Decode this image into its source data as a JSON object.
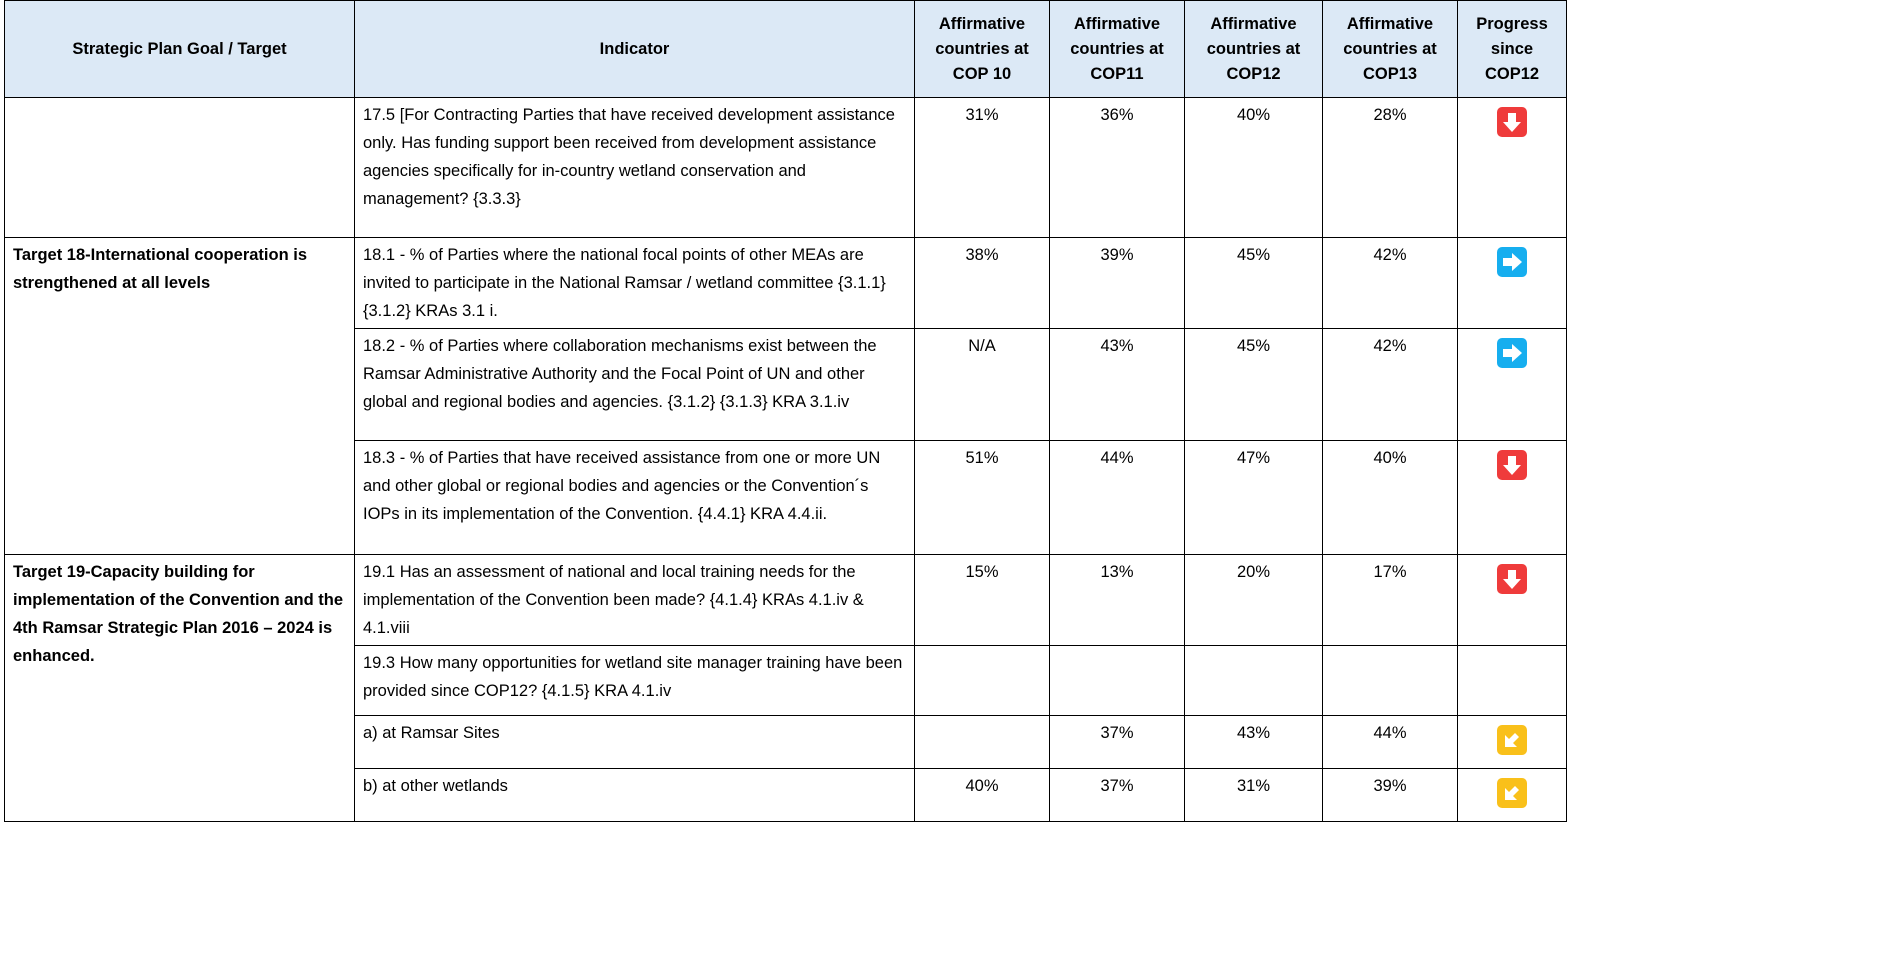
{
  "table": {
    "columns": [
      "Strategic Plan Goal / Target",
      "Indicator",
      "Affirmative countries at COP 10",
      "Affirmative countries at COP11",
      "Affirmative countries at COP12",
      "Affirmative countries at COP13",
      "Progress since COP12"
    ],
    "groups": [
      {
        "rows": [
          {
            "indicator": "17.5 [For Contracting Parties that have received development assistance only. Has funding support been received from development assistance agencies specifically for in-country wetland conservation and management? {3.3.3}",
            "cells": [
              "31%",
              "36%",
              "40%",
              "28%"
            ]
          }
        ]
      },
      {
        "goal": "Target 18-International cooperation is strengthened at all levels",
        "rows": [
          {
            "indicator": "18.1 - % of Parties where the national focal points of other MEAs are invited to participate in the National Ramsar / wetland committee {3.1.1} {3.1.2} KRAs 3.1 i.",
            "cells": [
              "38%",
              "39%",
              "45%",
              "42%"
            ]
          },
          {
            "indicator": "18.2 - % of Parties where collaboration mechanisms exist between the Ramsar Administrative Authority and the Focal Point of UN and other global and regional bodies and agencies. {3.1.2} {3.1.3} KRA 3.1.iv",
            "cells": [
              "N/A",
              "43%",
              "45%",
              "42%"
            ]
          },
          {
            "indicator": "18.3 - % of Parties that have received assistance from one or more UN and other global or regional bodies and agencies or the Convention´s IOPs in its implementation of the Convention. {4.4.1} KRA 4.4.ii.",
            "cells": [
              "51%",
              "44%",
              "47%",
              "40%"
            ]
          }
        ]
      },
      {
        "goal": "Target 19-Capacity building for implementation of the Convention and the 4th Ramsar Strategic Plan 2016 – 2024 is enhanced.",
        "rows": [
          {
            "indicator": "19.1 Has an assessment of national and local training needs for the implementation of the Convention been made? {4.1.4} KRAs 4.1.iv & 4.1.viii",
            "cells": [
              "15%",
              "13%",
              "20%",
              "17%"
            ]
          },
          {
            "indicator": "19.3 How many opportunities for wetland site manager training have been provided since COP12? {4.1.5} KRA 4.1.iv"
          },
          {
            "indicator": "a) at Ramsar Sites",
            "cells": [
              null,
              "37%",
              "43%",
              "44%"
            ]
          },
          {
            "indicator": "b) at other wetlands",
            "cells": [
              "40%",
              "37%",
              "31%",
              "39%"
            ]
          }
        ]
      }
    ]
  }
}
